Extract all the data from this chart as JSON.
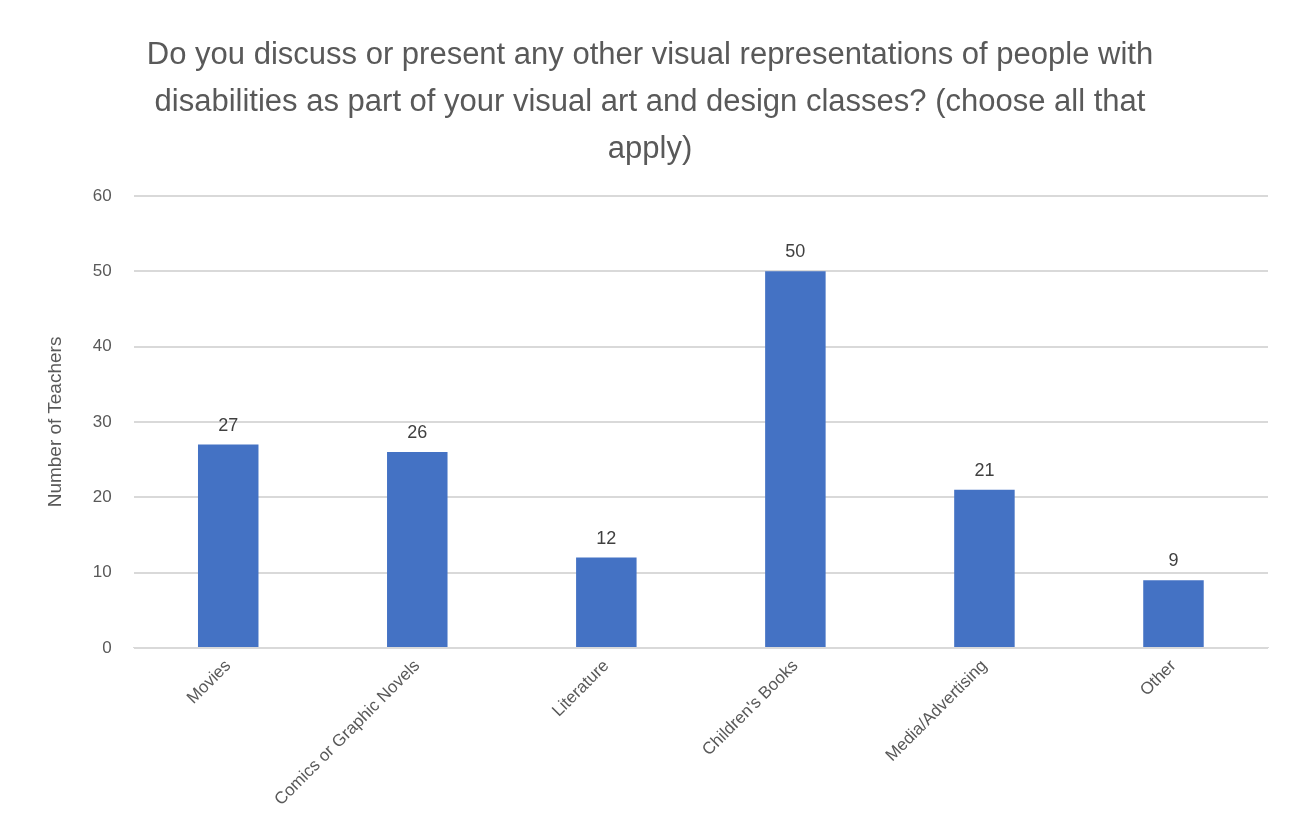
{
  "chart_data": {
    "type": "bar",
    "title": "Do you discuss or present any other visual representations of people with disabilities as part of your visual art and design classes? (choose all that apply)",
    "ylabel": "Number of Teachers",
    "categories": [
      "Movies",
      "Comics or Graphic Novels",
      "Literature",
      "Children's Books",
      "Media/Advertising",
      "Other"
    ],
    "values": [
      27,
      26,
      12,
      50,
      21,
      9
    ],
    "color": "#4472c4",
    "ylim": [
      0,
      60
    ],
    "yticks": [
      0,
      10,
      20,
      30,
      40,
      50,
      60
    ],
    "grid": "y",
    "data_labels": true,
    "legend": false
  }
}
